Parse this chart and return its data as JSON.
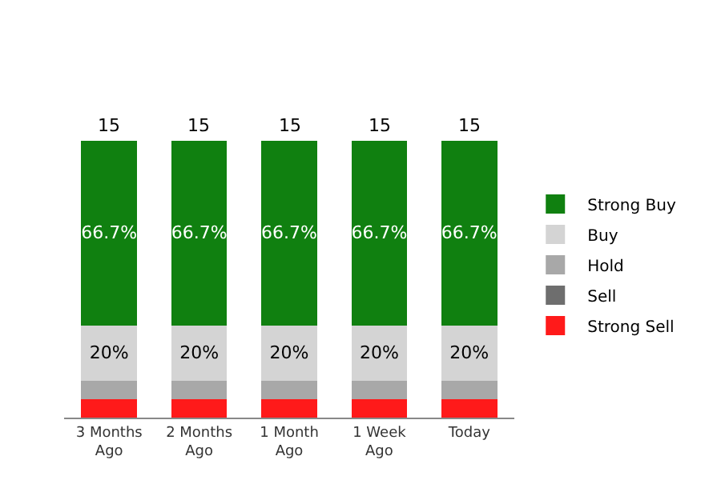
{
  "chart_data": {
    "type": "bar",
    "stacked": true,
    "categories": [
      "3 Months Ago",
      "2 Months Ago",
      "1 Month Ago",
      "1 Week Ago",
      "Today"
    ],
    "series": [
      {
        "name": "Strong Sell",
        "color": "#ff1a1a",
        "values": [
          6.6,
          6.6,
          6.6,
          6.6,
          6.6
        ]
      },
      {
        "name": "Sell",
        "color": "#6e6e6e",
        "values": [
          0,
          0,
          0,
          0,
          0
        ]
      },
      {
        "name": "Hold",
        "color": "#a8a8a8",
        "values": [
          6.7,
          6.7,
          6.7,
          6.7,
          6.7
        ]
      },
      {
        "name": "Buy",
        "color": "#d4d4d4",
        "values": [
          20,
          20,
          20,
          20,
          20
        ],
        "value_labels": [
          "20%",
          "20%",
          "20%",
          "20%",
          "20%"
        ]
      },
      {
        "name": "Strong Buy",
        "color": "#108010",
        "values": [
          66.7,
          66.7,
          66.7,
          66.7,
          66.7
        ],
        "value_labels": [
          "66.7%",
          "66.7%",
          "66.7%",
          "66.7%",
          "66.7%"
        ]
      }
    ],
    "annotations": [
      "15",
      "15",
      "15",
      "15",
      "15"
    ],
    "legend": "right"
  }
}
